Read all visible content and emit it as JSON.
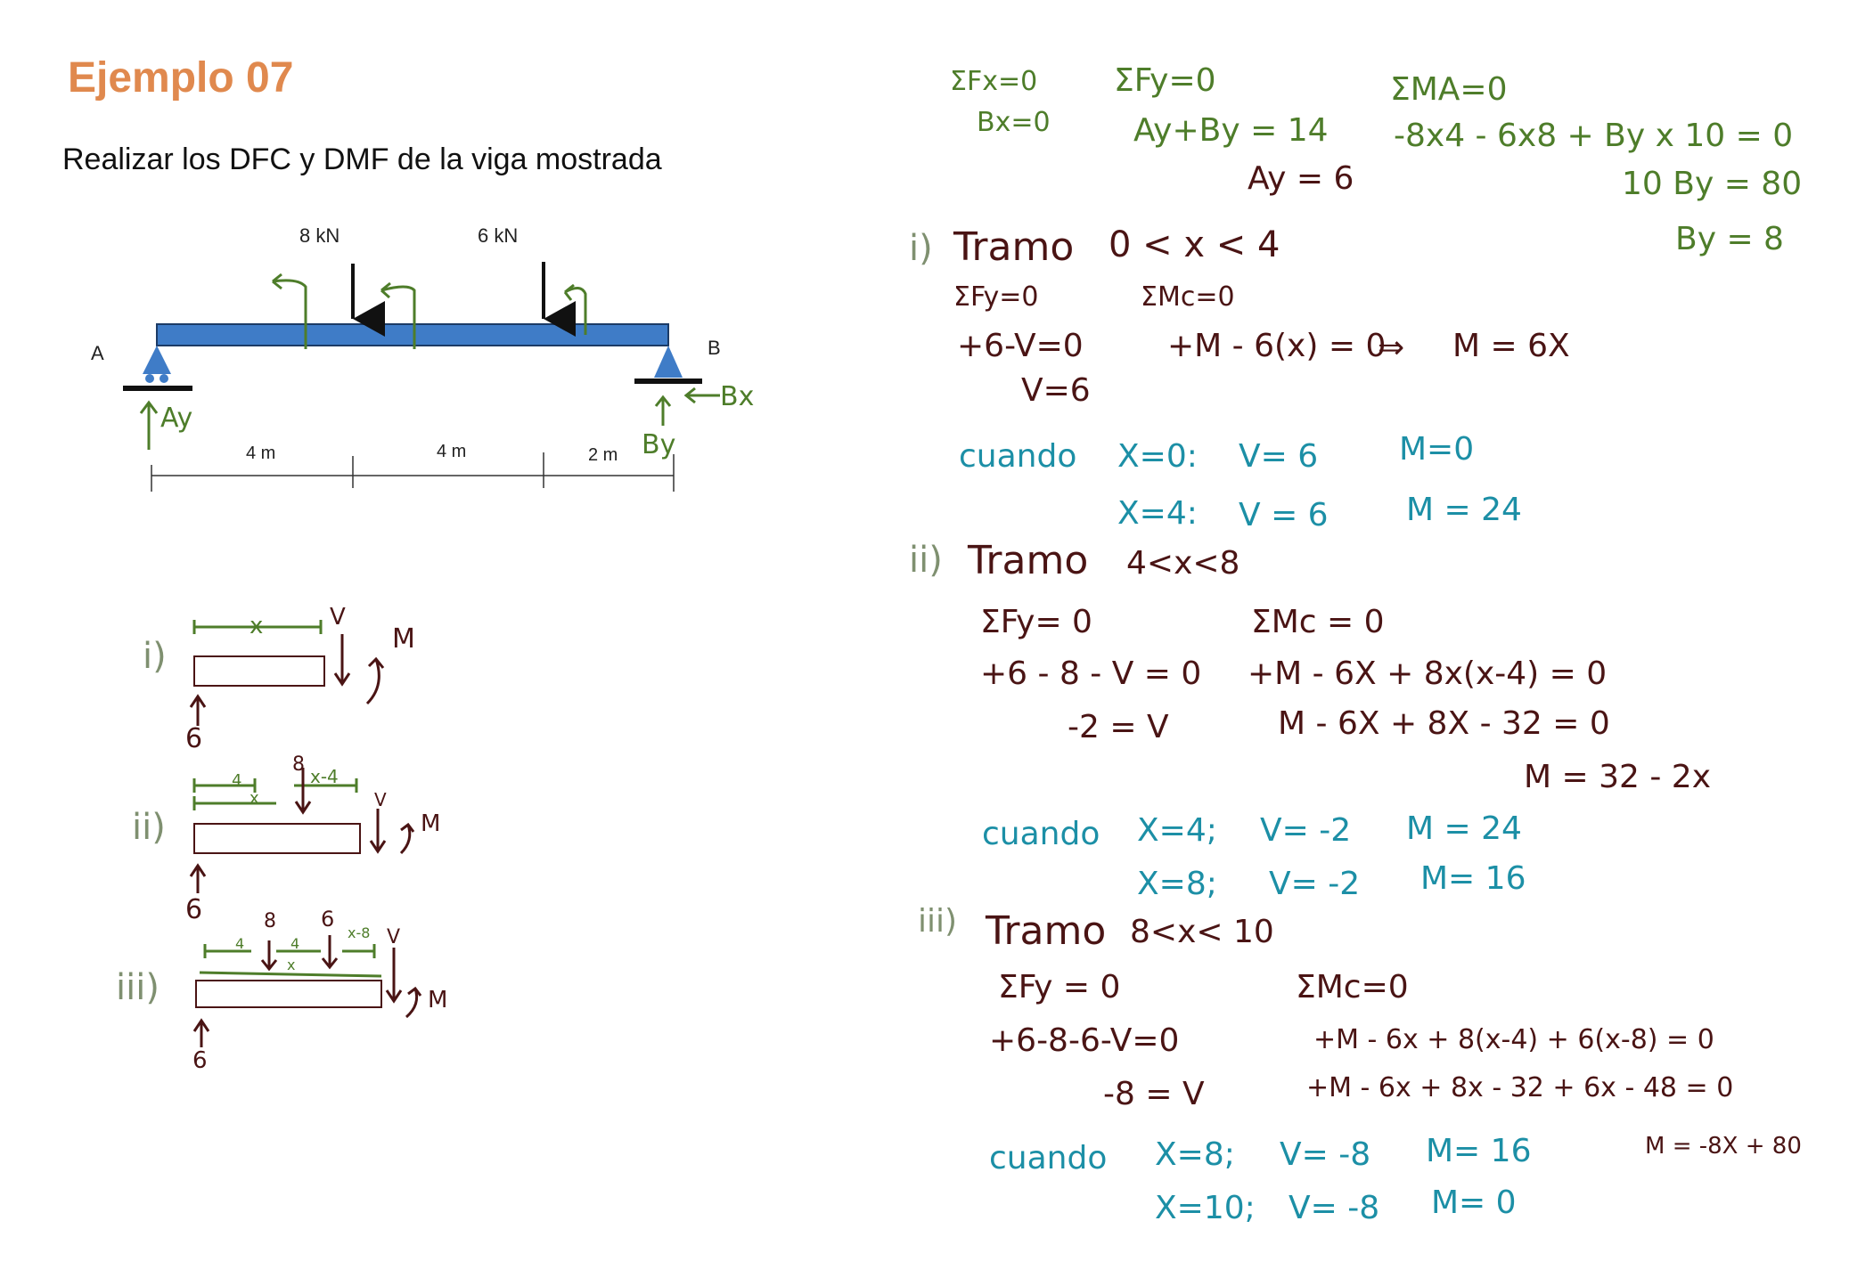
{
  "header": {
    "title": "Ejemplo 07",
    "subtitle": "Realizar los DFC y DMF de la viga mostrada"
  },
  "beam_diagram": {
    "load_1": "8 kN",
    "load_2": "6 kN",
    "support_a": "A",
    "support_b": "B",
    "reaction_ay": "Ay",
    "reaction_by": "By",
    "reaction_bx": "Bx",
    "span_1": "4 m",
    "span_2": "4 m",
    "span_3": "2 m",
    "beam_color": "#3F7CC7"
  },
  "fbd": {
    "i": {
      "roman": "i)",
      "x": "x",
      "v": "V",
      "m": "M",
      "reaction": "6"
    },
    "ii": {
      "roman": "ii)",
      "seg_4": "4",
      "x": "x",
      "x_minus": "x-4",
      "load": "8",
      "v": "V",
      "m": "M",
      "reaction": "6"
    },
    "iii": {
      "roman": "iii)",
      "seg_4a": "4",
      "seg_4b": "4",
      "x_minus": "x-8",
      "x": "x",
      "load_8": "8",
      "load_6": "6",
      "v": "V",
      "m": "M",
      "reaction": "6"
    }
  },
  "equilibrium": {
    "sum_fx": "ΣFx=0",
    "bx": "Bx=0",
    "sum_fy": "ΣFy=0",
    "ay_by": "Ay+By = 14",
    "ay": "Ay = 6",
    "sum_ma": "ΣMA=0",
    "moment_eq": "-8x4 - 6x8 + By x 10 = 0",
    "by_10": "10 By = 80",
    "by": "By = 8"
  },
  "tramo_1": {
    "roman": "i)",
    "title": "Tramo",
    "range": "0 < x < 4",
    "sum_fy": "ΣFy=0",
    "sum_mc": "ΣMc=0",
    "fy_eq": "+6-V=0",
    "m_eq": "+M - 6(x) = 0",
    "arrow": "⇒",
    "m_result": "M = 6X",
    "v_result": "V=6",
    "cuando": "cuando",
    "c1_x": "X=0:",
    "c1_v": "V= 6",
    "c1_m": "M=0",
    "c2_x": "X=4:",
    "c2_v": "V = 6",
    "c2_m": "M = 24"
  },
  "tramo_2": {
    "roman": "ii)",
    "title": "Tramo",
    "range": "4<x<8",
    "sum_fy": "ΣFy= 0",
    "sum_mc": "ΣMc = 0",
    "fy_eq": "+6 - 8 - V = 0",
    "m_eq": "+M - 6X + 8x(x-4) = 0",
    "v_result": "-2 = V",
    "m_eq2": "M - 6X + 8X - 32 = 0",
    "m_result": "M = 32 - 2x",
    "cuando": "cuando",
    "c1_x": "X=4;",
    "c1_v": "V= -2",
    "c1_m": "M = 24",
    "c2_x": "X=8;",
    "c2_v": "V= -2",
    "c2_m": "M= 16"
  },
  "tramo_3": {
    "roman": "iii)",
    "title": "Tramo",
    "range": "8<x< 10",
    "sum_fy": "ΣFy = 0",
    "sum_mc": "ΣMc=0",
    "fy_eq": "+6-8-6-V=0",
    "m_eq": "+M - 6x + 8(x-4) + 6(x-8) = 0",
    "v_result": "-8 = V",
    "m_eq2": "+M - 6x + 8x - 32 + 6x - 48 = 0",
    "m_result": "M = -8X + 80",
    "cuando": "cuando",
    "c1_x": "X=8;",
    "c1_v": "V= -8",
    "c1_m": "M= 16",
    "c2_x": "X=10;",
    "c2_v": "V= -8",
    "c2_m": "M= 0"
  }
}
